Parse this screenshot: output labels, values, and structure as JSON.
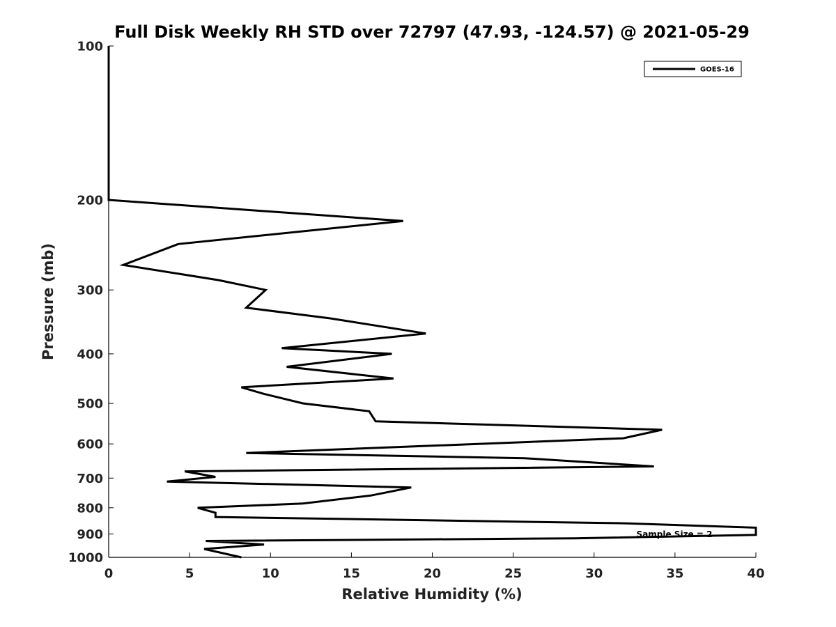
{
  "chart_data": {
    "type": "line",
    "title": "Full Disk Weekly RH STD over 72797 (47.93, -124.57) @ 2021-05-29",
    "xlabel": "Relative Humidity (%)",
    "ylabel": "Pressure (mb)",
    "xlim": [
      0,
      40
    ],
    "ylim": [
      100,
      1000
    ],
    "y_scale": "log",
    "y_inverted": true,
    "grid": false,
    "legend_position": "top-right",
    "x_ticks": [
      "0",
      "5",
      "10",
      "15",
      "20",
      "25",
      "30",
      "35",
      "40"
    ],
    "y_ticks": [
      "100",
      "200",
      "300",
      "400",
      "500",
      "600",
      "700",
      "800",
      "900",
      "1000"
    ],
    "annotation": "Sample Size = 2",
    "series": [
      {
        "name": "GOES-16",
        "color": "#000000",
        "points": [
          [
            0,
            100
          ],
          [
            0,
            125
          ],
          [
            0,
            150
          ],
          [
            0,
            175
          ],
          [
            0,
            200
          ],
          [
            18.2,
            220
          ],
          [
            4.3,
            244
          ],
          [
            0.9,
            268
          ],
          [
            6.8,
            287
          ],
          [
            9.7,
            300
          ],
          [
            8.5,
            325
          ],
          [
            13.7,
            341
          ],
          [
            19.6,
            365
          ],
          [
            10.7,
            390
          ],
          [
            17.5,
            400
          ],
          [
            11.0,
            424
          ],
          [
            17.6,
            447
          ],
          [
            8.2,
            465
          ],
          [
            9.6,
            479
          ],
          [
            12.0,
            500
          ],
          [
            16.1,
            518
          ],
          [
            16.5,
            542
          ],
          [
            34.2,
            563
          ],
          [
            31.8,
            585
          ],
          [
            8.5,
            625
          ],
          [
            25.7,
            640
          ],
          [
            33.7,
            664
          ],
          [
            4.7,
            679
          ],
          [
            6.6,
            696
          ],
          [
            3.6,
            711
          ],
          [
            18.7,
            730
          ],
          [
            16.2,
            757
          ],
          [
            12.0,
            785
          ],
          [
            5.5,
            800
          ],
          [
            6.6,
            818
          ],
          [
            6.6,
            834
          ],
          [
            32.0,
            858
          ],
          [
            40.0,
            875
          ],
          [
            40.0,
            904
          ],
          [
            28.8,
            918
          ],
          [
            6.0,
            929
          ],
          [
            9.6,
            944
          ],
          [
            5.9,
            963
          ],
          [
            8.2,
            1000
          ]
        ]
      }
    ]
  }
}
